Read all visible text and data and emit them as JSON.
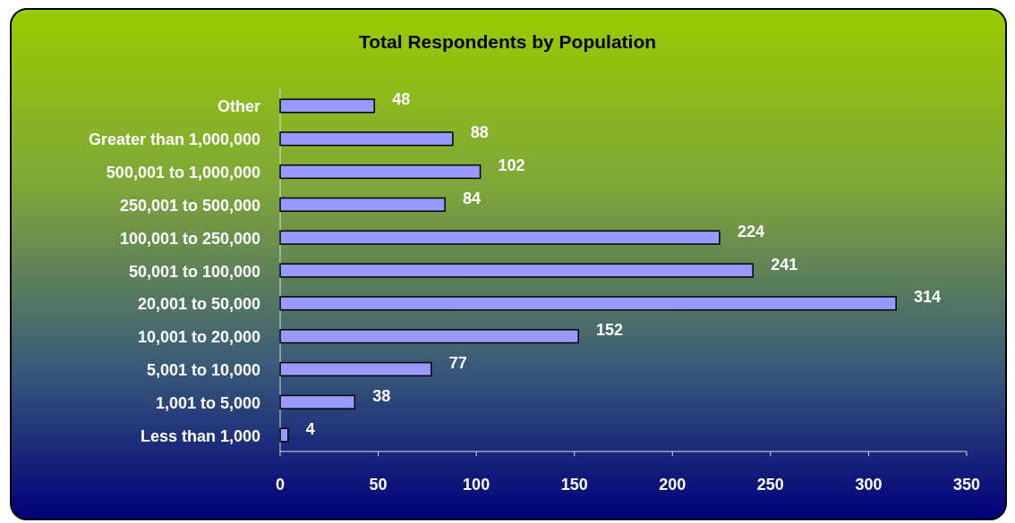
{
  "chart_data": {
    "type": "bar",
    "orientation": "horizontal",
    "title": "Total Respondents by Population",
    "categories": [
      "Other",
      "Greater than 1,000,000",
      "500,001 to 1,000,000",
      "250,001 to 500,000",
      "100,001 to 250,000",
      "50,001 to 100,000",
      "20,001 to 50,000",
      "10,001 to 20,000",
      "5,001 to 10,000",
      "1,001 to 5,000",
      "Less than 1,000"
    ],
    "values": [
      48,
      88,
      102,
      84,
      224,
      241,
      314,
      152,
      77,
      38,
      4
    ],
    "color": "#9999ff",
    "xlim": [
      0,
      350
    ],
    "xticks": [
      0,
      50,
      100,
      150,
      200,
      250,
      300,
      350
    ],
    "data_labels": true
  }
}
